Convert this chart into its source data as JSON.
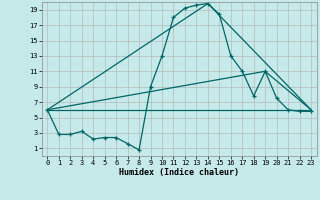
{
  "xlabel": "Humidex (Indice chaleur)",
  "background_color": "#c6eaea",
  "grid_color": "#b0b0b0",
  "line_color": "#006666",
  "xlim": [
    -0.5,
    23.5
  ],
  "ylim": [
    0,
    20
  ],
  "xticks": [
    0,
    1,
    2,
    3,
    4,
    5,
    6,
    7,
    8,
    9,
    10,
    11,
    12,
    13,
    14,
    15,
    16,
    17,
    18,
    19,
    20,
    21,
    22,
    23
  ],
  "yticks": [
    1,
    3,
    5,
    7,
    9,
    11,
    13,
    15,
    17,
    19
  ],
  "curve_x": [
    0,
    1,
    2,
    3,
    4,
    5,
    6,
    7,
    8,
    9,
    10,
    11,
    12,
    13,
    14,
    15,
    16,
    17,
    18,
    19,
    20,
    21,
    22,
    23
  ],
  "curve_y": [
    6.0,
    2.8,
    2.8,
    3.2,
    2.2,
    2.4,
    2.4,
    1.6,
    0.8,
    9.0,
    13.0,
    18.0,
    19.2,
    19.6,
    19.8,
    18.4,
    13.0,
    11.0,
    7.8,
    11.0,
    7.5,
    6.0,
    5.8,
    5.8
  ],
  "line1_x": [
    0,
    14,
    23
  ],
  "line1_y": [
    6.0,
    19.8,
    6.0
  ],
  "line2_x": [
    0,
    19,
    23
  ],
  "line2_y": [
    6.0,
    11.0,
    6.0
  ],
  "line3_x": [
    0,
    23
  ],
  "line3_y": [
    6.0,
    6.0
  ]
}
